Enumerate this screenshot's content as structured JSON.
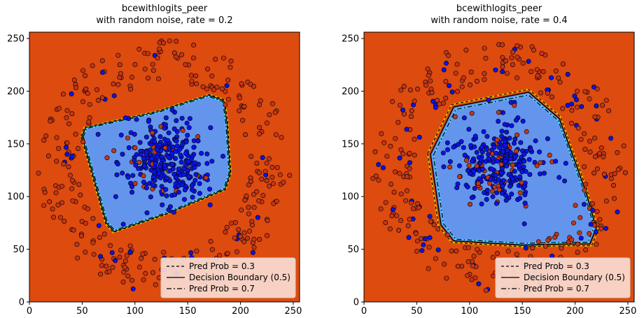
{
  "colors": {
    "background_region": "#dd4b0f",
    "inner_region": "#6495ed",
    "point_blue": "#0a14e6",
    "point_red": "#c43517",
    "legend_bg": "#f8dcd2",
    "contour_03": "#f5b400",
    "contour_07": "#4fd0ff"
  },
  "chart_data": [
    {
      "type": "scatter",
      "title": "bcewithlogits_peer\nwith random noise, rate = 0.2",
      "xlim": [
        0,
        256
      ],
      "ylim": [
        0,
        256
      ],
      "xticks": [
        0,
        50,
        100,
        150,
        200,
        250
      ],
      "yticks": [
        0,
        50,
        100,
        150,
        200,
        250
      ],
      "legend": {
        "placement": "bottom-right",
        "entries": [
          "Pred Prob = 0.3",
          "Decision Boundary (0.5)",
          "Pred Prob = 0.7"
        ]
      },
      "decision_region": [
        [
          50,
          157
        ],
        [
          53,
          165
        ],
        [
          120,
          180
        ],
        [
          170,
          196
        ],
        [
          184,
          191
        ],
        [
          187,
          170
        ],
        [
          190,
          122
        ],
        [
          185,
          107
        ],
        [
          130,
          84
        ],
        [
          80,
          67
        ],
        [
          73,
          75
        ]
      ],
      "inner_cluster": {
        "center": [
          128,
          131
        ],
        "spread": 20,
        "count": 300,
        "noise_rate": 0.2
      },
      "outer_ring": {
        "center": [
          128,
          128
        ],
        "radius_range": [
          80,
          120
        ],
        "count": 320,
        "noise_rate": 0.2
      }
    },
    {
      "type": "scatter",
      "title": "bcewithlogits_peer\nwith random noise, rate = 0.4",
      "xlim": [
        0,
        256
      ],
      "ylim": [
        0,
        256
      ],
      "xticks": [
        0,
        50,
        100,
        150,
        200,
        250
      ],
      "yticks": [
        0,
        50,
        100,
        150,
        200,
        250
      ],
      "legend": {
        "placement": "bottom-right",
        "entries": [
          "Pred Prob = 0.3",
          "Decision Boundary (0.5)",
          "Pred Prob = 0.7"
        ]
      },
      "decision_region": [
        [
          63,
          140
        ],
        [
          85,
          185
        ],
        [
          156,
          199
        ],
        [
          185,
          174
        ],
        [
          200,
          133
        ],
        [
          210,
          105
        ],
        [
          220,
          70
        ],
        [
          214,
          55
        ],
        [
          195,
          55
        ],
        [
          150,
          54
        ],
        [
          85,
          58
        ],
        [
          73,
          73
        ]
      ],
      "inner_cluster": {
        "center": [
          128,
          131
        ],
        "spread": 20,
        "count": 300,
        "noise_rate": 0.4
      },
      "outer_ring": {
        "center": [
          128,
          128
        ],
        "radius_range": [
          80,
          120
        ],
        "count": 320,
        "noise_rate": 0.4
      }
    }
  ]
}
